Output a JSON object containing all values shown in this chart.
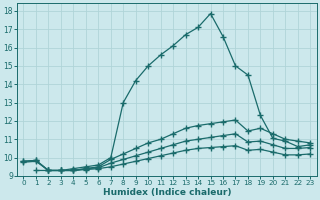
{
  "bg_color": "#cce8ec",
  "grid_color": "#b0d4d8",
  "line_color": "#1a6b6b",
  "xlabel": "Humidex (Indice chaleur)",
  "xlim": [
    -0.5,
    23.5
  ],
  "ylim": [
    9,
    18.4
  ],
  "yticks": [
    9,
    10,
    11,
    12,
    13,
    14,
    15,
    16,
    17,
    18
  ],
  "xticks": [
    0,
    1,
    2,
    3,
    4,
    5,
    6,
    7,
    8,
    9,
    10,
    11,
    12,
    13,
    14,
    15,
    16,
    17,
    18,
    19,
    20,
    21,
    22,
    23
  ],
  "curve_peak_x": [
    1,
    2,
    3,
    4,
    5,
    6,
    7,
    8,
    9,
    10,
    11,
    12,
    13,
    14,
    15,
    16,
    17,
    18,
    19,
    20,
    21,
    22,
    23
  ],
  "curve_peak_y": [
    9.3,
    9.3,
    9.3,
    9.4,
    9.5,
    9.6,
    10.0,
    13.0,
    14.2,
    15.0,
    15.6,
    16.1,
    16.7,
    17.1,
    17.85,
    16.6,
    15.0,
    14.5,
    12.3,
    11.05,
    10.9,
    10.6,
    10.7
  ],
  "curve_mid_x": [
    0,
    1,
    2,
    3,
    4,
    5,
    6,
    7,
    8,
    9,
    10,
    11,
    12,
    13,
    14,
    15,
    16,
    17,
    18,
    19,
    20,
    21,
    22,
    23
  ],
  "curve_mid_y": [
    9.8,
    9.85,
    9.3,
    9.3,
    9.3,
    9.4,
    9.5,
    9.9,
    10.2,
    10.5,
    10.8,
    11.0,
    11.3,
    11.6,
    11.75,
    11.85,
    11.95,
    12.05,
    11.45,
    11.6,
    11.3,
    11.0,
    10.9,
    10.8
  ],
  "curve_low1_x": [
    0,
    1,
    2,
    3,
    4,
    5,
    6,
    7,
    8,
    9,
    10,
    11,
    12,
    13,
    14,
    15,
    16,
    17,
    18,
    19,
    20,
    21,
    22,
    23
  ],
  "curve_low1_y": [
    9.8,
    9.85,
    9.3,
    9.3,
    9.3,
    9.4,
    9.45,
    9.7,
    9.9,
    10.1,
    10.3,
    10.5,
    10.7,
    10.9,
    11.0,
    11.1,
    11.2,
    11.3,
    10.85,
    10.9,
    10.7,
    10.5,
    10.5,
    10.55
  ],
  "curve_low2_x": [
    0,
    1,
    2,
    3,
    4,
    5,
    6,
    7,
    8,
    9,
    10,
    11,
    12,
    13,
    14,
    15,
    16,
    17,
    18,
    19,
    20,
    21,
    22,
    23
  ],
  "curve_low2_y": [
    9.75,
    9.8,
    9.3,
    9.3,
    9.3,
    9.35,
    9.4,
    9.5,
    9.65,
    9.8,
    9.95,
    10.1,
    10.25,
    10.4,
    10.5,
    10.55,
    10.6,
    10.65,
    10.4,
    10.45,
    10.3,
    10.15,
    10.15,
    10.2
  ],
  "marker": "+",
  "markersize": 4,
  "linewidth": 0.9
}
